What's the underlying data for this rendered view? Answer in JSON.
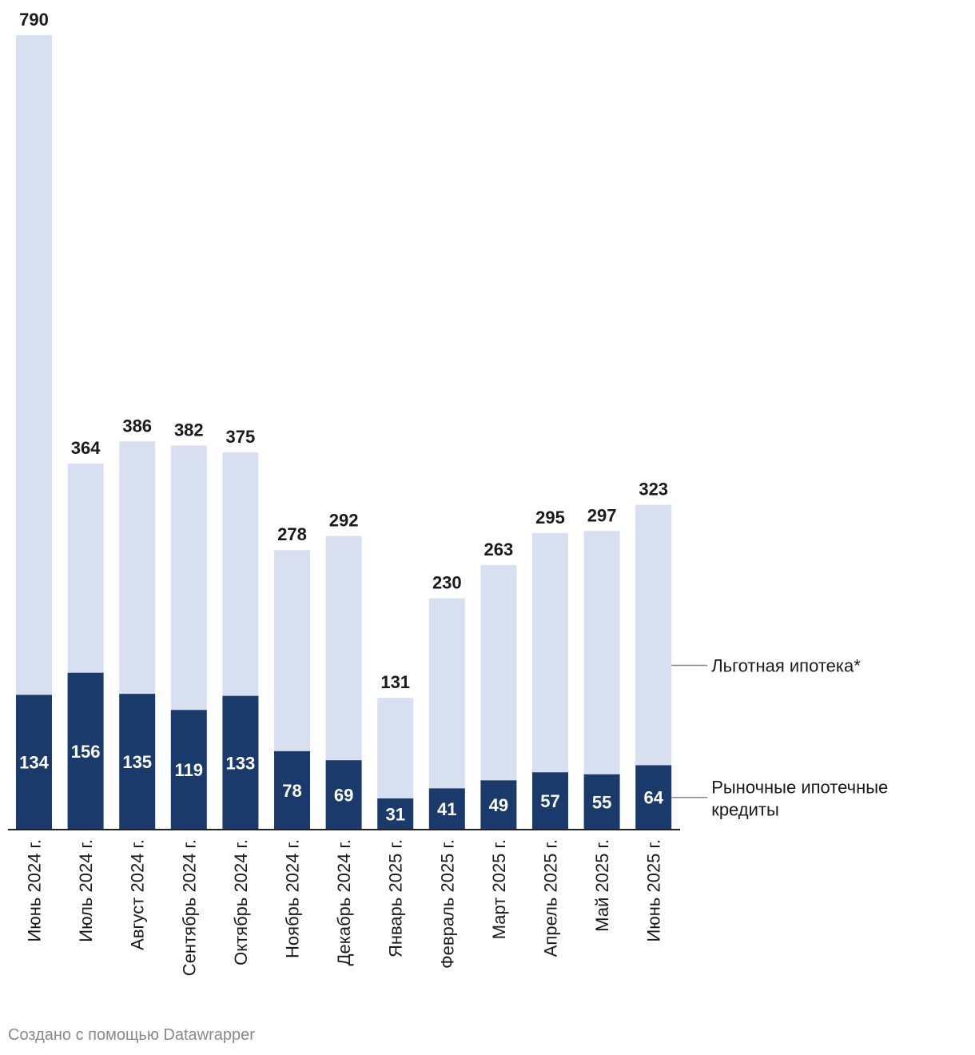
{
  "chart_data": {
    "type": "bar",
    "stacked": true,
    "categories": [
      "Июнь 2024 г.",
      "Июль 2024 г.",
      "Август 2024 г.",
      "Сентябрь 2024 г.",
      "Октябрь 2024 г.",
      "Ноябрь 2024 г.",
      "Декабрь 2024 г.",
      "Январь 2025 г.",
      "Февраль 2025 г.",
      "Март 2025 г.",
      "Апрель 2025 г.",
      "Май 2025 г.",
      "Июнь 2025 г."
    ],
    "totals": [
      790,
      364,
      386,
      382,
      375,
      278,
      292,
      131,
      230,
      263,
      295,
      297,
      323
    ],
    "series": [
      {
        "name": "Рыночные ипотечные кредиты",
        "values": [
          134,
          156,
          135,
          119,
          133,
          78,
          69,
          31,
          41,
          49,
          57,
          55,
          64
        ],
        "color": "#1a3a6b"
      },
      {
        "name": "Льготная ипотека*",
        "values": [
          656,
          208,
          251,
          263,
          242,
          200,
          223,
          100,
          189,
          214,
          238,
          242,
          259
        ],
        "color": "#d8dff0"
      }
    ],
    "legend": [
      {
        "text": "Льготная ипотека*"
      },
      {
        "lines": [
          "Рыночные ипотечные",
          "кредиты"
        ]
      }
    ],
    "ylim": [
      0,
      790
    ],
    "grid": false,
    "legend_placement": "right"
  },
  "credit": "Создано с помощью Datawrapper"
}
